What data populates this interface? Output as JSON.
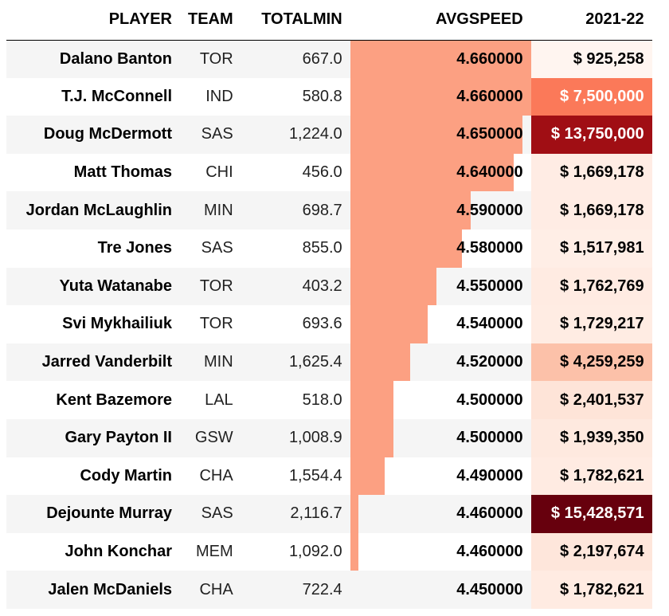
{
  "chart_data": {
    "type": "table",
    "columns": [
      "PLAYER",
      "TEAM",
      "TOTALMIN",
      "AVGSPEED",
      "2021-22"
    ],
    "rows": [
      {
        "player": "Dalano Banton",
        "team": "TOR",
        "totalmin": "667.0",
        "avgspeed": "4.660000",
        "salary": "$ 925,258",
        "speed_value": 4.66,
        "salary_value": 925258
      },
      {
        "player": "T.J. McConnell",
        "team": "IND",
        "totalmin": "580.8",
        "avgspeed": "4.660000",
        "salary": "$ 7,500,000",
        "speed_value": 4.66,
        "salary_value": 7500000
      },
      {
        "player": "Doug McDermott",
        "team": "SAS",
        "totalmin": "1,224.0",
        "avgspeed": "4.650000",
        "salary": "$ 13,750,000",
        "speed_value": 4.65,
        "salary_value": 13750000
      },
      {
        "player": "Matt Thomas",
        "team": "CHI",
        "totalmin": "456.0",
        "avgspeed": "4.640000",
        "salary": "$ 1,669,178",
        "speed_value": 4.64,
        "salary_value": 1669178
      },
      {
        "player": "Jordan McLaughlin",
        "team": "MIN",
        "totalmin": "698.7",
        "avgspeed": "4.590000",
        "salary": "$ 1,669,178",
        "speed_value": 4.59,
        "salary_value": 1669178
      },
      {
        "player": "Tre Jones",
        "team": "SAS",
        "totalmin": "855.0",
        "avgspeed": "4.580000",
        "salary": "$ 1,517,981",
        "speed_value": 4.58,
        "salary_value": 1517981
      },
      {
        "player": "Yuta Watanabe",
        "team": "TOR",
        "totalmin": "403.2",
        "avgspeed": "4.550000",
        "salary": "$ 1,762,769",
        "speed_value": 4.55,
        "salary_value": 1762769
      },
      {
        "player": "Svi Mykhailiuk",
        "team": "TOR",
        "totalmin": "693.6",
        "avgspeed": "4.540000",
        "salary": "$ 1,729,217",
        "speed_value": 4.54,
        "salary_value": 1729217
      },
      {
        "player": "Jarred Vanderbilt",
        "team": "MIN",
        "totalmin": "1,625.4",
        "avgspeed": "4.520000",
        "salary": "$ 4,259,259",
        "speed_value": 4.52,
        "salary_value": 4259259
      },
      {
        "player": "Kent Bazemore",
        "team": "LAL",
        "totalmin": "518.0",
        "avgspeed": "4.500000",
        "salary": "$ 2,401,537",
        "speed_value": 4.5,
        "salary_value": 2401537
      },
      {
        "player": "Gary Payton II",
        "team": "GSW",
        "totalmin": "1,008.9",
        "avgspeed": "4.500000",
        "salary": "$ 1,939,350",
        "speed_value": 4.5,
        "salary_value": 1939350
      },
      {
        "player": "Cody Martin",
        "team": "CHA",
        "totalmin": "1,554.4",
        "avgspeed": "4.490000",
        "salary": "$ 1,782,621",
        "speed_value": 4.49,
        "salary_value": 1782621
      },
      {
        "player": "Dejounte Murray",
        "team": "SAS",
        "totalmin": "2,116.7",
        "avgspeed": "4.460000",
        "salary": "$ 15,428,571",
        "speed_value": 4.46,
        "salary_value": 15428571
      },
      {
        "player": "John Konchar",
        "team": "MEM",
        "totalmin": "1,092.0",
        "avgspeed": "4.460000",
        "salary": "$ 2,197,674",
        "speed_value": 4.46,
        "salary_value": 2197674
      },
      {
        "player": "Jalen McDaniels",
        "team": "CHA",
        "totalmin": "722.4",
        "avgspeed": "4.450000",
        "salary": "$ 1,782,621",
        "speed_value": 4.45,
        "salary_value": 1782621
      }
    ],
    "bar_column": "AVGSPEED",
    "bar_range": [
      4.45,
      4.66
    ],
    "bar_color": "#fca082",
    "salary_colormap": [
      "#fff5f0",
      "#fee0d2",
      "#fcbba1",
      "#fc9272",
      "#fb6a4a",
      "#ef3b2c",
      "#cb181d",
      "#a50f15",
      "#67000d"
    ],
    "salary_range": [
      925258,
      15428571
    ]
  }
}
